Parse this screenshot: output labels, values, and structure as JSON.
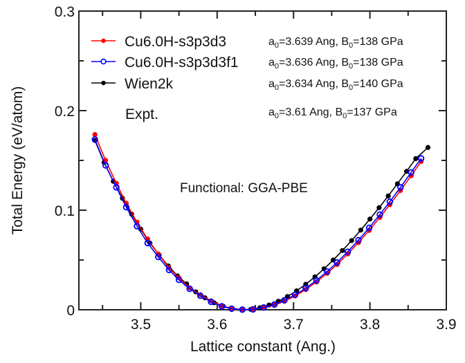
{
  "chart_data": {
    "type": "line",
    "title": "",
    "xlabel": "Lattice constant (Ang.)",
    "ylabel": "Total Energy (eV/atom)",
    "xlim": [
      3.419,
      3.9
    ],
    "ylim": [
      0,
      0.3
    ],
    "grid": false,
    "x_ticks": [
      3.5,
      3.6,
      3.7,
      3.8,
      3.9
    ],
    "x_tick_labels": [
      "3.5",
      "3.6",
      "3.7",
      "3.8",
      "3.9"
    ],
    "x_minor_ticks": [
      3.45,
      3.55,
      3.65,
      3.75,
      3.85
    ],
    "y_ticks": [
      0,
      0.1,
      0.2,
      0.3
    ],
    "y_tick_labels": [
      "0",
      "0.1",
      "0.2",
      "0.3"
    ],
    "y_minor_ticks": [
      0.05,
      0.15,
      0.25
    ],
    "legend_position": "top-left",
    "annotation": "Functional: GGA-PBE",
    "series": [
      {
        "name": "Cu6.0H-s3p3d3",
        "color": "#ff0000",
        "marker": "filled-circle",
        "params": {
          "a0": "3.639",
          "B0": "138"
        },
        "x": [
          3.44,
          3.454,
          3.468,
          3.481,
          3.495,
          3.509,
          3.523,
          3.537,
          3.55,
          3.564,
          3.578,
          3.592,
          3.606,
          3.619,
          3.633,
          3.647,
          3.661,
          3.675,
          3.688,
          3.702,
          3.716,
          3.73,
          3.744,
          3.757,
          3.771,
          3.785,
          3.799,
          3.813,
          3.826,
          3.84,
          3.854,
          3.867
        ],
        "y": [
          0.176,
          0.15,
          0.127,
          0.107,
          0.088,
          0.071,
          0.056,
          0.042,
          0.032,
          0.022,
          0.015,
          0.009,
          0.004,
          0.0015,
          0.0001,
          0.0002,
          0.0018,
          0.0046,
          0.0085,
          0.0138,
          0.0203,
          0.0279,
          0.0366,
          0.0455,
          0.0561,
          0.0675,
          0.0797,
          0.0928,
          0.1055,
          0.1198,
          0.1346,
          0.149
        ]
      },
      {
        "name": "Cu6.0H-s3p3d3f1",
        "color": "#0000ff",
        "marker": "open-circle",
        "params": {
          "a0": "3.636",
          "B0": "138"
        },
        "x": [
          3.44,
          3.454,
          3.468,
          3.481,
          3.495,
          3.509,
          3.523,
          3.537,
          3.55,
          3.564,
          3.578,
          3.592,
          3.606,
          3.619,
          3.633,
          3.647,
          3.661,
          3.675,
          3.688,
          3.702,
          3.716,
          3.73,
          3.744,
          3.757,
          3.771,
          3.785,
          3.799,
          3.813,
          3.826,
          3.84,
          3.854,
          3.867
        ],
        "y": [
          0.171,
          0.145,
          0.123,
          0.103,
          0.084,
          0.067,
          0.053,
          0.04,
          0.03,
          0.021,
          0.014,
          0.008,
          0.0035,
          0.0011,
          0.0001,
          0.0004,
          0.0023,
          0.0053,
          0.0095,
          0.015,
          0.0217,
          0.0295,
          0.0384,
          0.0475,
          0.0583,
          0.0699,
          0.0823,
          0.0956,
          0.1085,
          0.123,
          0.138,
          0.152
        ]
      },
      {
        "name": "Wien2k",
        "color": "#000000",
        "marker": "filled-circle",
        "params": {
          "a0": "3.634",
          "B0": "140"
        },
        "x": [
          3.44,
          3.452,
          3.464,
          3.476,
          3.488,
          3.5,
          3.512,
          3.524,
          3.536,
          3.548,
          3.56,
          3.572,
          3.584,
          3.596,
          3.608,
          3.62,
          3.632,
          3.644,
          3.656,
          3.668,
          3.68,
          3.692,
          3.704,
          3.716,
          3.728,
          3.74,
          3.752,
          3.764,
          3.776,
          3.788,
          3.8,
          3.812,
          3.824,
          3.836,
          3.848,
          3.86,
          3.876
        ],
        "y": [
          0.17,
          0.148,
          0.129,
          0.112,
          0.096,
          0.081,
          0.067,
          0.055,
          0.044,
          0.034,
          0.026,
          0.018,
          0.012,
          0.007,
          0.0035,
          0.0011,
          0.0,
          0.0004,
          0.002,
          0.0047,
          0.0085,
          0.0133,
          0.019,
          0.0256,
          0.033,
          0.0412,
          0.05,
          0.0595,
          0.0695,
          0.08,
          0.0911,
          0.1025,
          0.1143,
          0.1265,
          0.139,
          0.1518,
          0.163
        ]
      }
    ],
    "params_text": [
      {
        "a_label": "a",
        "a_sub": "0",
        "a_value": "=3.639 Ang, ",
        "b_label": "B",
        "b_sub": "0",
        "b_value": "=138 GPa"
      },
      {
        "a_label": "a",
        "a_sub": "0",
        "a_value": "=3.636 Ang, ",
        "b_label": "B",
        "b_sub": "0",
        "b_value": "=138 GPa"
      },
      {
        "a_label": "a",
        "a_sub": "0",
        "a_value": "=3.634 Ang, ",
        "b_label": "B",
        "b_sub": "0",
        "b_value": "=140 GPa"
      },
      {
        "a_label": "a",
        "a_sub": "0",
        "a_value": "=3.61  Ang,  ",
        "b_label": "B",
        "b_sub": "0",
        "b_value": "=137 GPa"
      }
    ],
    "expt_label": "Expt."
  }
}
